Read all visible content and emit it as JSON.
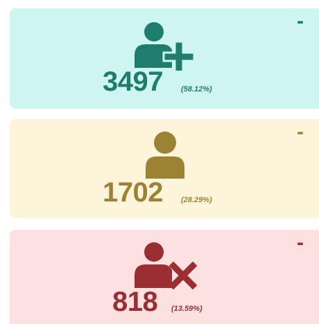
{
  "cards": [
    {
      "toggle": "-",
      "value": 3497,
      "percent": "(58.12%)"
    },
    {
      "toggle": "-",
      "value": 1702,
      "percent": "(28.29%)"
    },
    {
      "toggle": "-",
      "value": 818,
      "percent": "(13.59%)"
    }
  ]
}
